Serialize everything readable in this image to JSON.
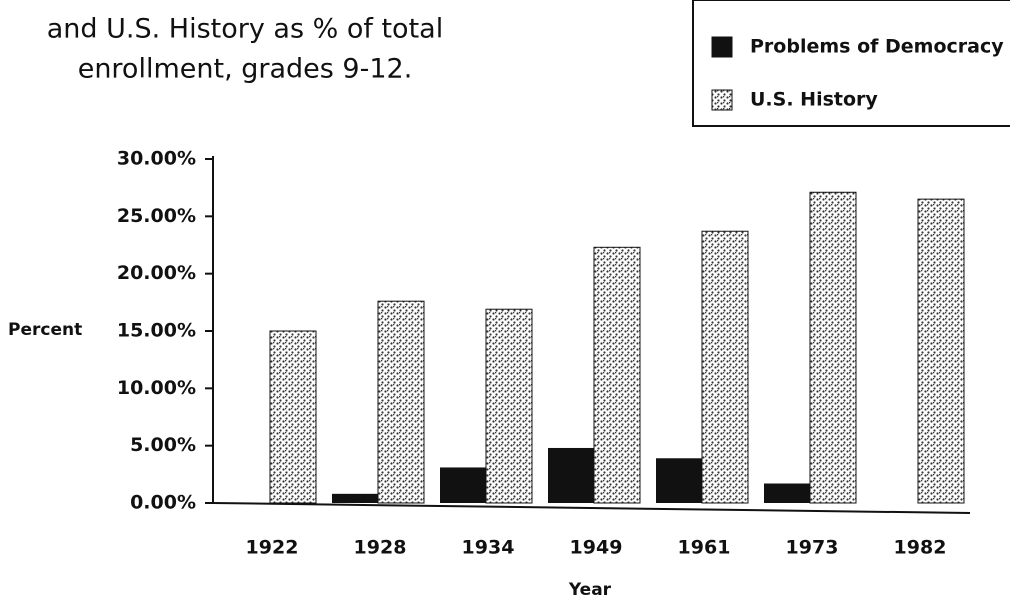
{
  "chart_data": {
    "type": "bar",
    "title": [
      "and U.S. History as % of total",
      "enrollment, grades 9-12."
    ],
    "x_label": "Year",
    "y_label": "Percent",
    "categories": [
      "1922",
      "1928",
      "1934",
      "1949",
      "1961",
      "1973",
      "1982"
    ],
    "series": [
      {
        "name": "Problems of Democracy",
        "color": "#111111",
        "pattern": false,
        "values": [
          0,
          0.8,
          3.1,
          4.8,
          3.9,
          1.7,
          0
        ]
      },
      {
        "name": "U.S. History",
        "color": "#333333",
        "pattern": true,
        "values": [
          15.0,
          17.6,
          16.9,
          22.3,
          23.7,
          27.1,
          26.5
        ]
      }
    ],
    "ylim": [
      0,
      30
    ],
    "yticks": [
      {
        "value": 0,
        "label": "0.00%"
      },
      {
        "value": 5,
        "label": "5.00%"
      },
      {
        "value": 10,
        "label": "10.00%"
      },
      {
        "value": 15,
        "label": "15.00%"
      },
      {
        "value": 20,
        "label": "20.00%"
      },
      {
        "value": 25,
        "label": "25.00%"
      },
      {
        "value": 30,
        "label": "30.00%"
      }
    ],
    "legend": "upper right",
    "grid": false
  }
}
